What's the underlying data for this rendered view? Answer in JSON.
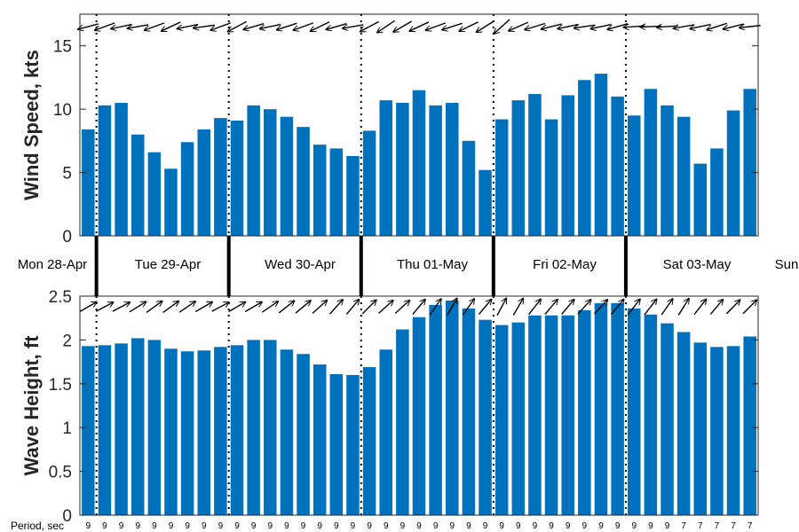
{
  "chart_data": [
    {
      "type": "bar",
      "ylabel": "Wind Speed, kts",
      "ylim": [
        0,
        17.5
      ],
      "yticks": [
        "0",
        "5",
        "10",
        "15"
      ],
      "grid": false,
      "values": [
        8.4,
        10.3,
        10.5,
        8.0,
        6.6,
        5.3,
        7.4,
        8.4,
        9.3,
        9.1,
        10.3,
        10.0,
        9.4,
        8.6,
        7.2,
        6.9,
        6.3,
        8.3,
        10.7,
        10.5,
        11.5,
        10.3,
        10.5,
        7.5,
        5.2,
        9.2,
        10.7,
        11.2,
        9.2,
        11.1,
        12.3,
        12.8,
        11.0,
        9.5,
        11.6,
        10.3,
        9.4,
        5.7,
        6.9,
        9.9,
        11.6
      ],
      "arrow_directions_deg": [
        195,
        200,
        192,
        190,
        200,
        205,
        192,
        188,
        200,
        208,
        196,
        192,
        198,
        200,
        206,
        196,
        190,
        208,
        214,
        210,
        205,
        200,
        198,
        206,
        212,
        222,
        204,
        197,
        194,
        192,
        188,
        192,
        196,
        184,
        182,
        184,
        190,
        192,
        198,
        194,
        186
      ],
      "color": "#0072bd"
    },
    {
      "type": "bar",
      "ylabel": "Wave Height, ft",
      "ylim": [
        0,
        2.5
      ],
      "yticks": [
        "0",
        "0.5",
        "1",
        "1.5",
        "2",
        "2.5"
      ],
      "grid": false,
      "values": [
        1.93,
        1.94,
        1.96,
        2.02,
        2.0,
        1.9,
        1.87,
        1.88,
        1.92,
        1.94,
        2.0,
        2.0,
        1.89,
        1.84,
        1.72,
        1.61,
        1.6,
        1.69,
        1.89,
        2.12,
        2.26,
        2.4,
        2.45,
        2.36,
        2.23,
        2.17,
        2.2,
        2.28,
        2.28,
        2.28,
        2.34,
        2.42,
        2.42,
        2.36,
        2.29,
        2.19,
        2.09,
        1.97,
        1.92,
        1.93,
        2.04
      ],
      "arrow_directions_deg": [
        30,
        28,
        28,
        32,
        36,
        36,
        34,
        30,
        28,
        30,
        30,
        34,
        38,
        40,
        42,
        48,
        50,
        45,
        42,
        42,
        50,
        55,
        60,
        55,
        50,
        62,
        60,
        52,
        50,
        50,
        48,
        48,
        50,
        52,
        52,
        55,
        58,
        52,
        50,
        46,
        45
      ],
      "color": "#0072bd"
    }
  ],
  "days": [
    "Mon 28-Apr",
    "Tue 29-Apr",
    "Wed 30-Apr",
    "Thu 01-May",
    "Fri 02-May",
    "Sat 03-May",
    "Sun"
  ],
  "period": {
    "title": "Period, sec",
    "values": [
      "9",
      "9",
      "9",
      "9",
      "9",
      "9",
      "9",
      "9",
      "9",
      "9",
      "9",
      "9",
      "9",
      "9",
      "9",
      "9",
      "9",
      "9",
      "9",
      "9",
      "9",
      "9",
      "9",
      "9",
      "9",
      "9",
      "9",
      "9",
      "9",
      "9",
      "9",
      "9",
      "9",
      "9",
      "9",
      "9",
      "7",
      "7",
      "7",
      "7",
      "7"
    ]
  }
}
